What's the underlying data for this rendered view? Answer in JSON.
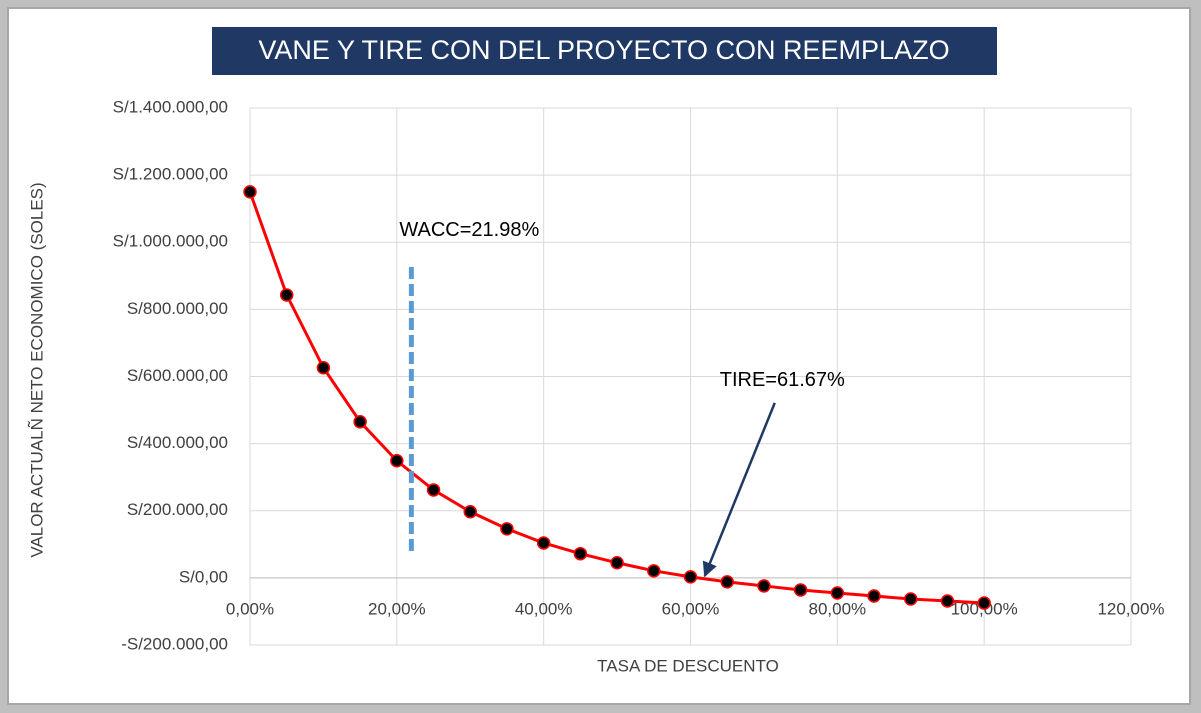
{
  "chart_data": {
    "type": "line",
    "title": "VANE Y TIRE CON DEL PROYECTO CON REEMPLAZO",
    "x_label": "TASA DE DESCUENTO",
    "y_label": "VALOR ACTUALÑ NETO ECONOMICO (SOLES)",
    "x": [
      0,
      5,
      10,
      15,
      20,
      25,
      30,
      35,
      40,
      45,
      50,
      55,
      60,
      65,
      70,
      75,
      80,
      85,
      90,
      95,
      100
    ],
    "series": [
      {
        "name": "VANE",
        "color": "#ff0000",
        "marker_color": "#000000",
        "values": [
          1150000,
          843000,
          626000,
          465000,
          349000,
          262000,
          197000,
          146000,
          104000,
          72000,
          45000,
          21000,
          3000,
          -12000,
          -24000,
          -36000,
          -45000,
          -54000,
          -63000,
          -69000,
          -75000
        ]
      }
    ],
    "xlim": [
      0,
      120
    ],
    "xticks": [
      {
        "value": 0,
        "label": "0,00%"
      },
      {
        "value": 20,
        "label": "20,00%"
      },
      {
        "value": 40,
        "label": "40,00%"
      },
      {
        "value": 60,
        "label": "60,00%"
      },
      {
        "value": 80,
        "label": "80,00%"
      },
      {
        "value": 100,
        "label": "100,00%"
      },
      {
        "value": 120,
        "label": "120,00%"
      }
    ],
    "ylim": [
      -200000,
      1400000
    ],
    "yticks": [
      {
        "value": -200000,
        "label": "-S/200.000,00"
      },
      {
        "value": 0,
        "label": "S/0,00"
      },
      {
        "value": 200000,
        "label": "S/200.000,00"
      },
      {
        "value": 400000,
        "label": "S/400.000,00"
      },
      {
        "value": 600000,
        "label": "S/600.000,00"
      },
      {
        "value": 800000,
        "label": "S/800.000,00"
      },
      {
        "value": 1000000,
        "label": "S/1.000.000,00"
      },
      {
        "value": 1200000,
        "label": "S/1.200.000,00"
      },
      {
        "value": 1400000,
        "label": "S/1.400.000,00"
      }
    ],
    "grid": true,
    "annotations": [
      {
        "text": "WACC=21.98%",
        "x": 21.98,
        "line_y": [
          80000,
          930000
        ],
        "color": "#5b9bd5"
      },
      {
        "text": "TIRE=61.67%",
        "x": 61.67,
        "color": "#1f3864"
      }
    ]
  }
}
